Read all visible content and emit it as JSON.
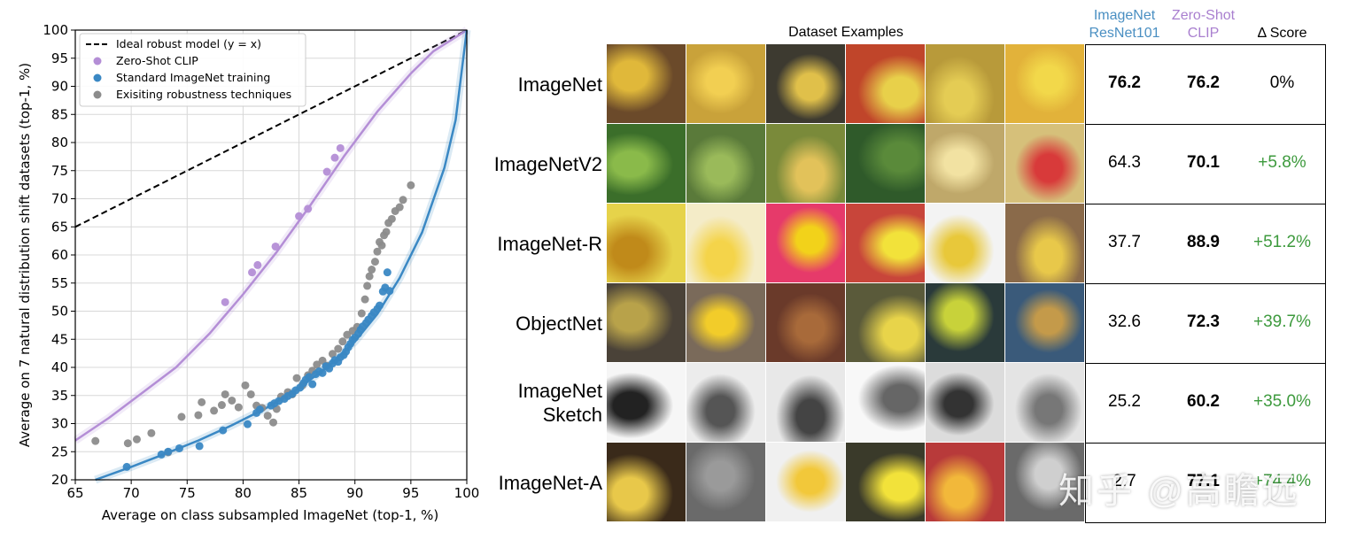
{
  "chart_data": {
    "type": "scatter",
    "title": "",
    "xlabel": "Average on class subsampled ImageNet (top-1, %)",
    "ylabel": "Average on 7 natural distribution shift datasets (top-1, %)",
    "xlim": [
      65,
      100
    ],
    "ylim": [
      20,
      100
    ],
    "xticks": [
      65,
      70,
      75,
      80,
      85,
      90,
      95,
      100
    ],
    "yticks": [
      20,
      25,
      30,
      35,
      40,
      45,
      50,
      55,
      60,
      65,
      70,
      75,
      80,
      85,
      90,
      95,
      100
    ],
    "grid": true,
    "legend_position": "top-left",
    "legend": [
      {
        "label": "Ideal robust model (y = x)",
        "kind": "dashed-line",
        "color": "#000000"
      },
      {
        "label": "Zero-Shot CLIP",
        "kind": "marker",
        "color": "#b48ed6"
      },
      {
        "label": "Standard ImageNet training",
        "kind": "marker",
        "color": "#3a88c4"
      },
      {
        "label": "Exisiting robustness techniques",
        "kind": "marker",
        "color": "#8c8c8c"
      }
    ],
    "ideal_line": {
      "x": [
        65,
        100
      ],
      "y": [
        65,
        100
      ],
      "color": "#000000"
    },
    "series": [
      {
        "key": "clip",
        "color": "#b48ed6",
        "x": [
          78.4,
          80.8,
          81.3,
          82.9,
          85.0,
          85.8,
          87.5,
          88.2,
          88.7
        ],
        "y": [
          51.6,
          56.9,
          58.2,
          61.5,
          66.9,
          68.2,
          74.8,
          77.3,
          79.0
        ],
        "fit": {
          "x": [
            65,
            68,
            71,
            74,
            77,
            80,
            83,
            86,
            89,
            92,
            95,
            97,
            100
          ],
          "y": [
            27,
            31,
            35.5,
            40,
            46,
            53,
            60.5,
            68.8,
            77.5,
            85.5,
            92.3,
            96.2,
            100
          ]
        }
      },
      {
        "key": "standard",
        "color": "#3a88c4",
        "x": [
          69.6,
          72.7,
          73.3,
          74.3,
          76.1,
          78.2,
          80.4,
          81.2,
          81.5,
          82.5,
          82.8,
          83.2,
          83.7,
          84.0,
          84.4,
          84.7,
          85.1,
          85.4,
          85.6,
          85.9,
          86.2,
          86.5,
          86.8,
          87.1,
          87.4,
          87.7,
          88.0,
          88.2,
          88.5,
          88.7,
          89.0,
          89.2,
          89.4,
          89.6,
          89.8,
          90.0,
          90.3,
          90.5,
          90.7,
          91.0,
          91.2,
          91.5,
          91.7,
          92.0,
          92.2,
          92.5,
          92.7,
          92.9,
          93.1
        ],
        "y": [
          22.3,
          24.5,
          25.0,
          25.6,
          26.0,
          28.8,
          29.9,
          31.9,
          32.5,
          33.2,
          33.6,
          34.0,
          34.4,
          34.9,
          35.3,
          35.9,
          36.4,
          37.2,
          37.8,
          38.3,
          37.0,
          38.8,
          39.3,
          39.0,
          40.2,
          39.8,
          40.7,
          41.3,
          41.0,
          41.8,
          42.2,
          42.8,
          43.6,
          44.2,
          44.9,
          45.3,
          46.0,
          46.7,
          47.3,
          47.9,
          48.5,
          49.2,
          49.8,
          50.4,
          51.0,
          53.5,
          54.2,
          56.9,
          53.6
        ],
        "fit": {
          "x": [
            66.8,
            70,
            73,
            76,
            79,
            82,
            85,
            88,
            90,
            92,
            94,
            96,
            98,
            99,
            100
          ],
          "y": [
            20,
            22.3,
            24.6,
            27.0,
            29.7,
            32.7,
            36.3,
            40.8,
            44.6,
            49.5,
            55.9,
            64.0,
            75.5,
            84.0,
            100
          ]
        }
      },
      {
        "key": "robustness",
        "color": "#8c8c8c",
        "x": [
          66.8,
          69.7,
          70.5,
          71.8,
          73.3,
          74.5,
          76.0,
          76.3,
          77.4,
          78.1,
          78.4,
          79.0,
          79.6,
          80.2,
          80.7,
          81.2,
          81.7,
          82.2,
          82.7,
          83.0,
          83.4,
          84.0,
          84.4,
          84.8,
          85.3,
          85.8,
          86.2,
          86.6,
          87.1,
          87.5,
          88.0,
          88.5,
          88.9,
          89.3,
          89.8,
          90.2,
          90.6,
          90.9,
          91.1,
          91.3,
          91.5,
          91.8,
          92.0,
          92.2,
          92.4,
          92.6,
          92.8,
          93.0,
          93.3,
          93.6,
          94.0,
          94.3,
          95.0
        ],
        "y": [
          26.9,
          26.5,
          27.2,
          28.3,
          24.9,
          31.2,
          31.5,
          33.8,
          32.3,
          33.3,
          35.2,
          34.1,
          32.9,
          36.8,
          35.2,
          33.2,
          32.8,
          31.4,
          30.2,
          32.6,
          34.8,
          35.6,
          35.2,
          38.1,
          36.8,
          38.6,
          39.4,
          40.5,
          41.2,
          40.3,
          42.4,
          43.3,
          44.6,
          45.8,
          46.5,
          47.2,
          49.6,
          52.1,
          54.5,
          56.2,
          57.4,
          58.8,
          60.6,
          62.3,
          61.7,
          63.5,
          64.1,
          65.7,
          66.4,
          67.8,
          68.5,
          69.8,
          72.4
        ]
      }
    ]
  },
  "table": {
    "header": {
      "examples": "Dataset Examples",
      "resnet_line1": "ImageNet",
      "resnet_line2": "ResNet101",
      "clip_line1": "Zero-Shot",
      "clip_line2": "CLIP",
      "delta": "Δ Score"
    },
    "colors": {
      "resnet_header": "#4a8fc2",
      "clip_header": "#a97fcf",
      "delta_positive": "#3d9a3d"
    },
    "rows": [
      {
        "name": "ImageNet",
        "name_line2": "",
        "resnet": "76.2",
        "clip": "76.2",
        "delta": "0%"
      },
      {
        "name": "ImageNetV2",
        "name_line2": "",
        "resnet": "64.3",
        "clip": "70.1",
        "delta": "+5.8%"
      },
      {
        "name": "ImageNet-R",
        "name_line2": "",
        "resnet": "37.7",
        "clip": "88.9",
        "delta": "+51.2%"
      },
      {
        "name": "ObjectNet",
        "name_line2": "",
        "resnet": "32.6",
        "clip": "72.3",
        "delta": "+39.7%"
      },
      {
        "name": "ImageNet",
        "name_line2": "Sketch",
        "resnet": "25.2",
        "clip": "60.2",
        "delta": "+35.0%"
      },
      {
        "name": "ImageNet-A",
        "name_line2": "",
        "resnet": "2.7",
        "clip": "77.1",
        "delta": "+74.4%"
      }
    ]
  },
  "watermark": {
    "text": "知乎 @高瞻远"
  }
}
